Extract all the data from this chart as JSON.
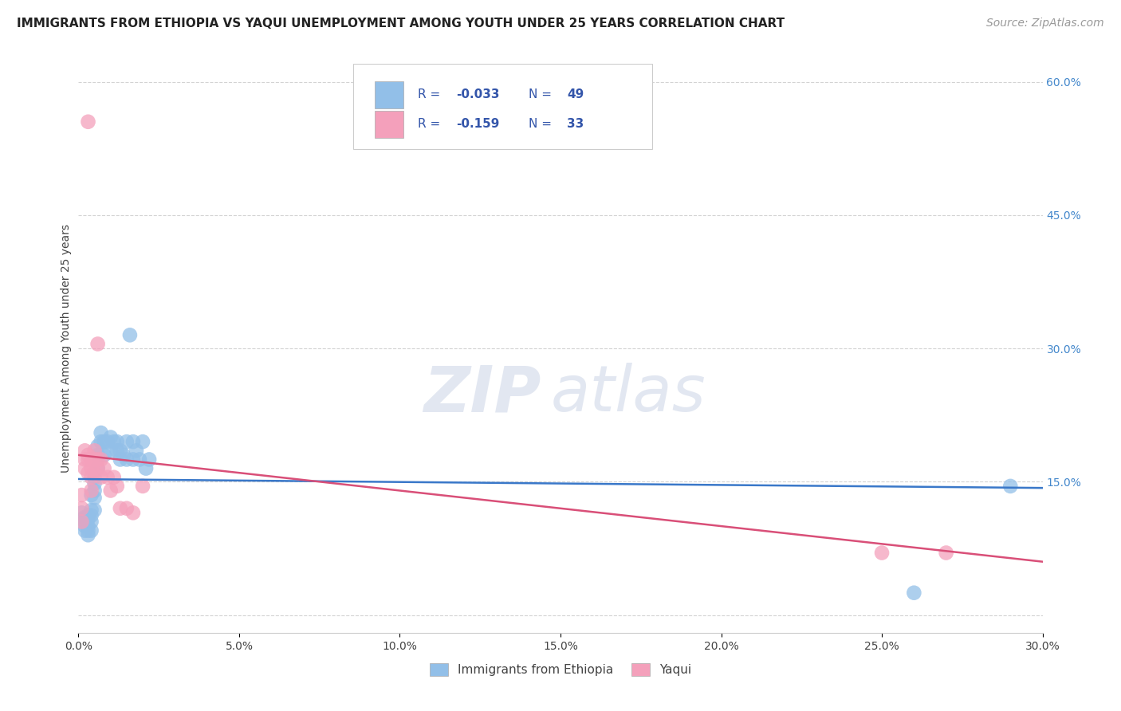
{
  "title": "IMMIGRANTS FROM ETHIOPIA VS YAQUI UNEMPLOYMENT AMONG YOUTH UNDER 25 YEARS CORRELATION CHART",
  "source": "Source: ZipAtlas.com",
  "ylabel": "Unemployment Among Youth under 25 years",
  "xlim": [
    0.0,
    0.3
  ],
  "ylim": [
    -0.02,
    0.62
  ],
  "legend_r1": "R = ",
  "legend_v1": "-0.033",
  "legend_n1_label": "N = ",
  "legend_n1": "49",
  "legend_r2": "R =  ",
  "legend_v2": "-0.159",
  "legend_n2_label": "N = ",
  "legend_n2": "33",
  "blue_scatter_x": [
    0.001,
    0.001,
    0.002,
    0.002,
    0.002,
    0.002,
    0.003,
    0.003,
    0.003,
    0.003,
    0.003,
    0.004,
    0.004,
    0.004,
    0.004,
    0.004,
    0.005,
    0.005,
    0.005,
    0.005,
    0.005,
    0.006,
    0.006,
    0.006,
    0.007,
    0.007,
    0.008,
    0.008,
    0.009,
    0.01,
    0.01,
    0.011,
    0.012,
    0.012,
    0.013,
    0.013,
    0.014,
    0.015,
    0.015,
    0.016,
    0.017,
    0.017,
    0.018,
    0.019,
    0.02,
    0.021,
    0.022,
    0.26,
    0.29
  ],
  "blue_scatter_y": [
    0.115,
    0.108,
    0.11,
    0.105,
    0.1,
    0.095,
    0.112,
    0.108,
    0.1,
    0.095,
    0.09,
    0.135,
    0.118,
    0.112,
    0.105,
    0.095,
    0.155,
    0.148,
    0.14,
    0.132,
    0.118,
    0.19,
    0.18,
    0.165,
    0.205,
    0.195,
    0.195,
    0.18,
    0.195,
    0.2,
    0.185,
    0.195,
    0.195,
    0.185,
    0.185,
    0.175,
    0.18,
    0.195,
    0.175,
    0.315,
    0.195,
    0.175,
    0.185,
    0.175,
    0.195,
    0.165,
    0.175,
    0.025,
    0.145
  ],
  "pink_scatter_x": [
    0.001,
    0.001,
    0.001,
    0.002,
    0.002,
    0.002,
    0.003,
    0.003,
    0.003,
    0.004,
    0.004,
    0.004,
    0.004,
    0.005,
    0.005,
    0.005,
    0.006,
    0.006,
    0.007,
    0.007,
    0.008,
    0.009,
    0.01,
    0.011,
    0.012,
    0.013,
    0.015,
    0.017,
    0.02,
    0.25,
    0.27,
    0.003,
    0.006
  ],
  "pink_scatter_y": [
    0.135,
    0.12,
    0.105,
    0.185,
    0.175,
    0.165,
    0.18,
    0.175,
    0.16,
    0.175,
    0.165,
    0.155,
    0.14,
    0.185,
    0.175,
    0.16,
    0.175,
    0.165,
    0.175,
    0.155,
    0.165,
    0.155,
    0.14,
    0.155,
    0.145,
    0.12,
    0.12,
    0.115,
    0.145,
    0.07,
    0.07,
    0.555,
    0.305
  ],
  "blue_line_x": [
    0.0,
    0.3
  ],
  "blue_line_y": [
    0.153,
    0.143
  ],
  "pink_line_x": [
    0.0,
    0.3
  ],
  "pink_line_y": [
    0.18,
    0.06
  ],
  "scatter_color_blue": "#92bfe8",
  "scatter_color_pink": "#f4a0bb",
  "line_color_blue": "#3a78c9",
  "line_color_pink": "#d94f78",
  "watermark_zip": "ZIP",
  "watermark_atlas": "atlas",
  "background_color": "#ffffff",
  "grid_color": "#c8c8c8",
  "legend_text_color": "#3355aa",
  "title_fontsize": 11,
  "source_fontsize": 10,
  "ylabel_fontsize": 10,
  "tick_fontsize": 10,
  "right_tick_color": "#4488cc"
}
